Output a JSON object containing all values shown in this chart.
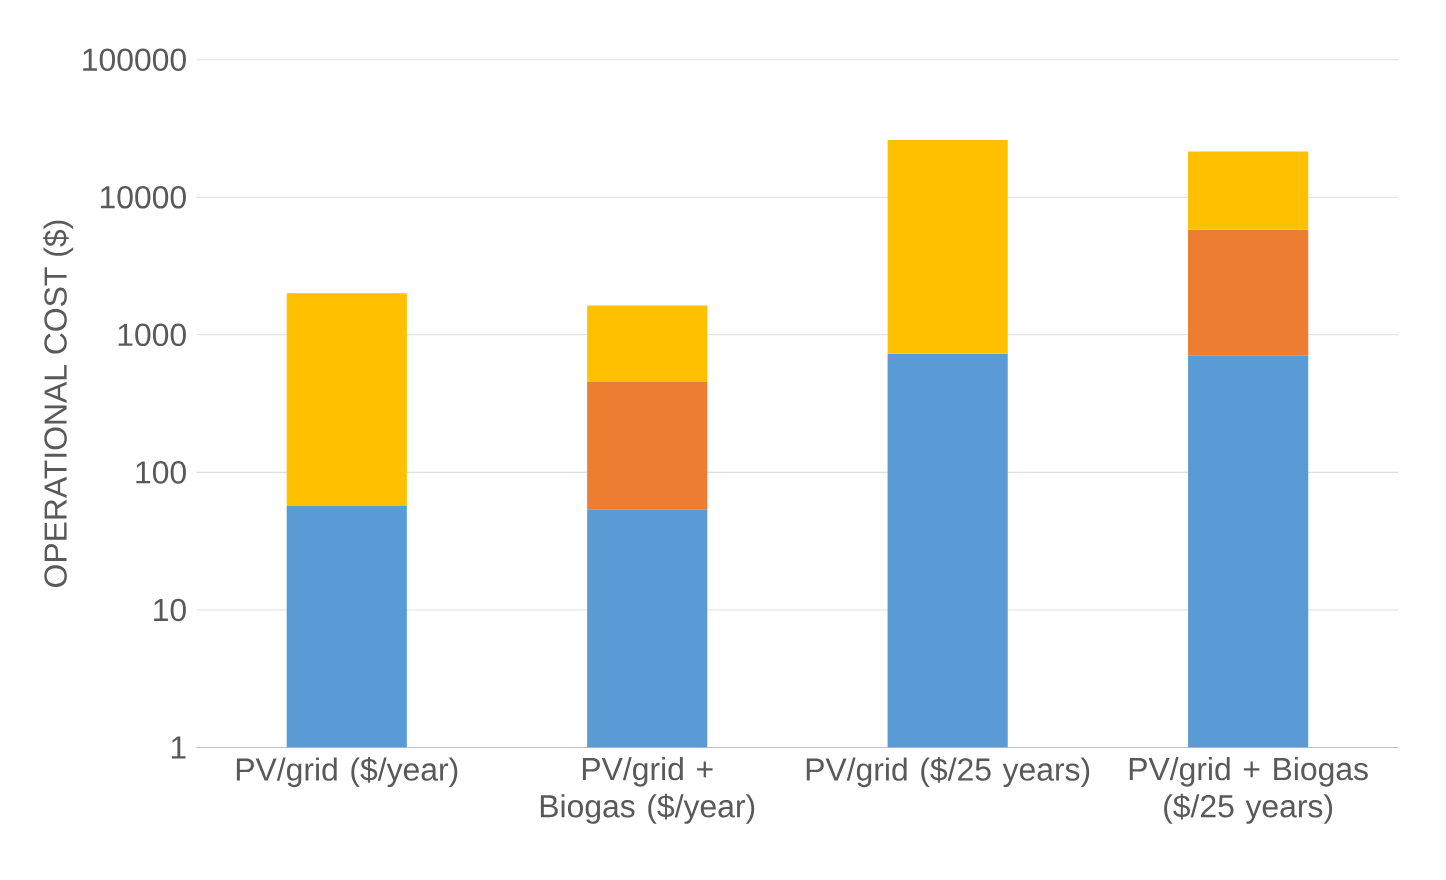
{
  "chart_data": {
    "type": "bar",
    "stacked": true,
    "log": "y",
    "grid": "y",
    "ylabel": "OPERATIONAL COST ($)",
    "categories": [
      "PV/grid ($/year)",
      "PV/grid + Biogas ($/year)",
      "PV/grid ($/25 years)",
      "PV/grid + Biogas ($/25 years)"
    ],
    "ylim": [
      1,
      100000
    ],
    "yticks": [
      1,
      10,
      100,
      1000,
      10000,
      100000
    ],
    "series": [
      {
        "color": "#5b9bd5",
        "values": [
          57,
          54,
          730,
          710
        ]
      },
      {
        "color": "#ed7d31",
        "values": [
          null,
          400,
          null,
          5100
        ]
      },
      {
        "color": "#ffc000",
        "values": [
          1950,
          1180,
          25300,
          15700
        ]
      }
    ]
  }
}
